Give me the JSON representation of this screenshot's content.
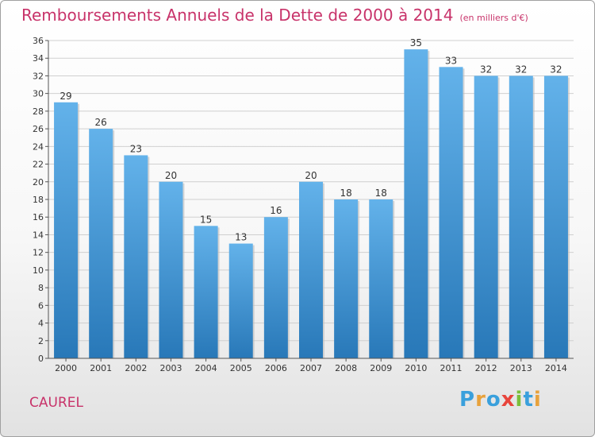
{
  "header": {
    "title": "Remboursements Annuels de la Dette de 2000 à 2014",
    "subtitle": "(en milliers d'€)"
  },
  "footer": {
    "commune": "CAUREL",
    "brand_letters": [
      "P",
      "r",
      "o",
      "x",
      "i",
      "t",
      "i"
    ],
    "brand_colors": [
      "#3aa0dc",
      "#e8a23c",
      "#3aa0dc",
      "#e8453c",
      "#7bbf3a",
      "#3aa0dc",
      "#e8a23c"
    ]
  },
  "colors": {
    "bar_top": "#63b2ea",
    "bar_bottom": "#2878b8",
    "title": "#c8336a",
    "grid": "#d0d0d0"
  },
  "chart_data": {
    "type": "bar",
    "title": "Remboursements Annuels de la Dette de 2000 à 2014",
    "xlabel": "",
    "ylabel": "",
    "ylim": [
      0,
      36
    ],
    "y_ticks": [
      0,
      2,
      4,
      6,
      8,
      10,
      12,
      14,
      16,
      18,
      20,
      22,
      24,
      26,
      28,
      30,
      32,
      34,
      36
    ],
    "grid": true,
    "categories": [
      "2000",
      "2001",
      "2002",
      "2003",
      "2004",
      "2005",
      "2006",
      "2007",
      "2008",
      "2009",
      "2010",
      "2011",
      "2012",
      "2013",
      "2014"
    ],
    "values": [
      29,
      26,
      23,
      20,
      15,
      13,
      16,
      20,
      18,
      18,
      35,
      33,
      32,
      32,
      32
    ]
  }
}
